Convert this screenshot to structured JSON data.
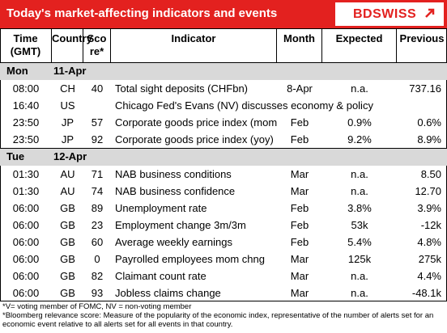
{
  "header": {
    "title": "Today's market-affecting indicators and events",
    "logo": "BDSWISS"
  },
  "columns": [
    [
      "Time",
      "(GMT)"
    ],
    [
      "Country"
    ],
    [
      "Sco",
      "re*"
    ],
    [
      "Indicator"
    ],
    [
      "Month"
    ],
    [
      "Expected"
    ],
    [
      "Previous"
    ]
  ],
  "sections": [
    {
      "day": "Mon",
      "date": "11-Apr",
      "rows": [
        {
          "time": "08:00",
          "country": "CH",
          "score": 40,
          "indicator": "Total sight deposits (CHFbn)",
          "month": "8-Apr",
          "expected": "n.a.",
          "previous": "737.16"
        },
        {
          "time": "16:40",
          "country": "US",
          "indicator": "Chicago Fed's Evans (NV) discusses economy & policy"
        },
        {
          "time": "23:50",
          "country": "JP",
          "score": 57,
          "indicator": "Corporate goods price index (mom",
          "month": "Feb",
          "expected": "0.9%",
          "previous": "0.6%"
        },
        {
          "time": "23:50",
          "country": "JP",
          "score": 92,
          "indicator": "Corporate goods price index (yoy)",
          "month": "Feb",
          "expected": "9.2%",
          "previous": "8.9%"
        }
      ]
    },
    {
      "day": "Tue",
      "date": "12-Apr",
      "rows": [
        {
          "time": "01:30",
          "country": "AU",
          "score": 71,
          "indicator": "NAB business conditions",
          "month": "Mar",
          "expected": "n.a.",
          "previous": "8.50"
        },
        {
          "time": "01:30",
          "country": "AU",
          "score": 74,
          "indicator": "NAB business confidence",
          "month": "Mar",
          "expected": "n.a.",
          "previous": "12.70"
        },
        {
          "time": "06:00",
          "country": "GB",
          "score": 89,
          "indicator": "Unemployment rate",
          "month": "Feb",
          "expected": "3.8%",
          "previous": "3.9%"
        },
        {
          "time": "06:00",
          "country": "GB",
          "score": 23,
          "indicator": "Employment change 3m/3m",
          "month": "Feb",
          "expected": "53k",
          "previous": "-12k"
        },
        {
          "time": "06:00",
          "country": "GB",
          "score": 60,
          "indicator": "Average weekly earnings",
          "month": "Feb",
          "expected": "5.4%",
          "previous": "4.8%"
        },
        {
          "time": "06:00",
          "country": "GB",
          "score": 0,
          "indicator": "Payrolled employees mom chng",
          "month": "Mar",
          "expected": "125k",
          "previous": "275k"
        },
        {
          "time": "06:00",
          "country": "GB",
          "score": 82,
          "indicator": "Claimant count rate",
          "month": "Mar",
          "expected": "n.a.",
          "previous": "4.4%"
        },
        {
          "time": "06:00",
          "country": "GB",
          "score": 93,
          "indicator": "Jobless claims change",
          "month": "Mar",
          "expected": "n.a.",
          "previous": "-48.1k"
        }
      ]
    }
  ],
  "footnotes": [
    "*V= voting member of FOMC, NV = non-voting member",
    "*Bloomberg relevance score:  Measure of the popularity of the economic index, representative of the number of alerts set for an economic event relative to all alerts set for all events in that country."
  ]
}
